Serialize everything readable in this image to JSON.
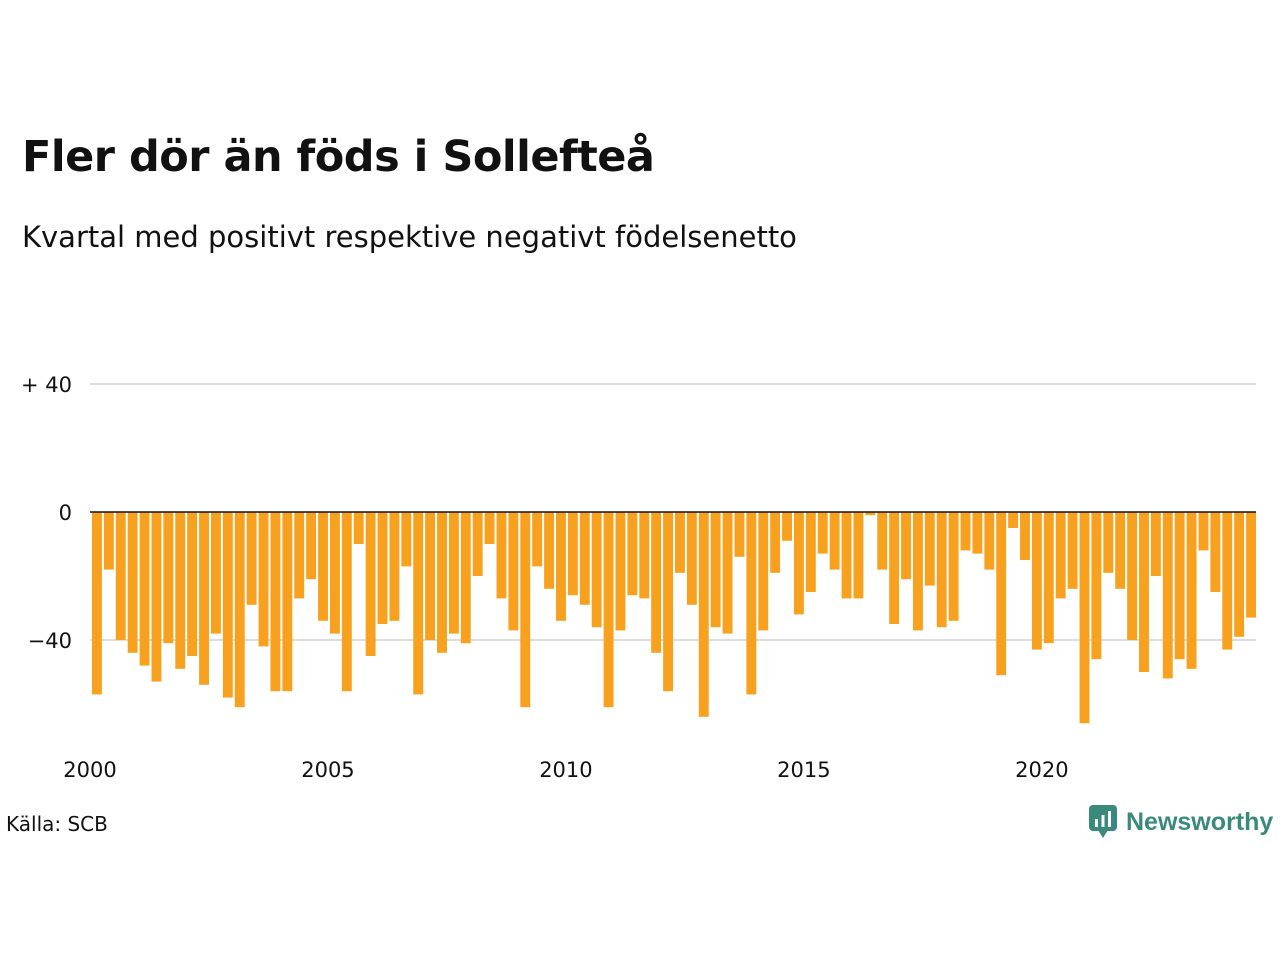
{
  "title": "Fler dör än föds i Sollefteå",
  "subtitle": "Kvartal med positivt respektive negativt födelsenetto",
  "source": "Källa: SCB",
  "brand": "Newsworthy",
  "colors": {
    "bar": "#f7a11e",
    "zero_line": "#111111",
    "grid": "#dddddd",
    "brand": "#3a8a7c"
  },
  "chart_data": {
    "type": "bar",
    "title": "Fler dör än föds i Sollefteå",
    "subtitle": "Kvartal med positivt respektive negativt födelsenetto",
    "xlabel": "",
    "ylabel": "",
    "x_start_year": 2000,
    "periods_per_year": 4,
    "xticks": [
      2000,
      2005,
      2010,
      2015,
      2020
    ],
    "xtick_labels": [
      "2000",
      "2005",
      "2010",
      "2015",
      "2020"
    ],
    "yticks": [
      40,
      0,
      -40
    ],
    "ytick_labels": [
      "+ 40",
      "0",
      "−40"
    ],
    "ylim": [
      -80,
      40
    ],
    "grid": true,
    "values": [
      -57,
      -18,
      -40,
      -44,
      -48,
      -53,
      -41,
      -49,
      -45,
      -54,
      -38,
      -58,
      -61,
      -29,
      -42,
      -56,
      -56,
      -27,
      -21,
      -34,
      -38,
      -56,
      -10,
      -45,
      -35,
      -34,
      -17,
      -57,
      -40,
      -44,
      -38,
      -41,
      -20,
      -10,
      -27,
      -37,
      -61,
      -17,
      -24,
      -34,
      -26,
      -29,
      -36,
      -61,
      -37,
      -26,
      -27,
      -44,
      -56,
      -19,
      -29,
      -64,
      -36,
      -38,
      -14,
      -57,
      -37,
      -19,
      -9,
      -32,
      -25,
      -13,
      -18,
      -27,
      -27,
      -1,
      -18,
      -35,
      -21,
      -37,
      -23,
      -36,
      -34,
      -12,
      -13,
      -18,
      -51,
      -5,
      -15,
      -43,
      -41,
      -27,
      -24,
      -66,
      -46,
      -19,
      -24,
      -40,
      -50,
      -20,
      -52,
      -46,
      -49,
      -12,
      -25,
      -43,
      -39,
      -33
    ]
  }
}
